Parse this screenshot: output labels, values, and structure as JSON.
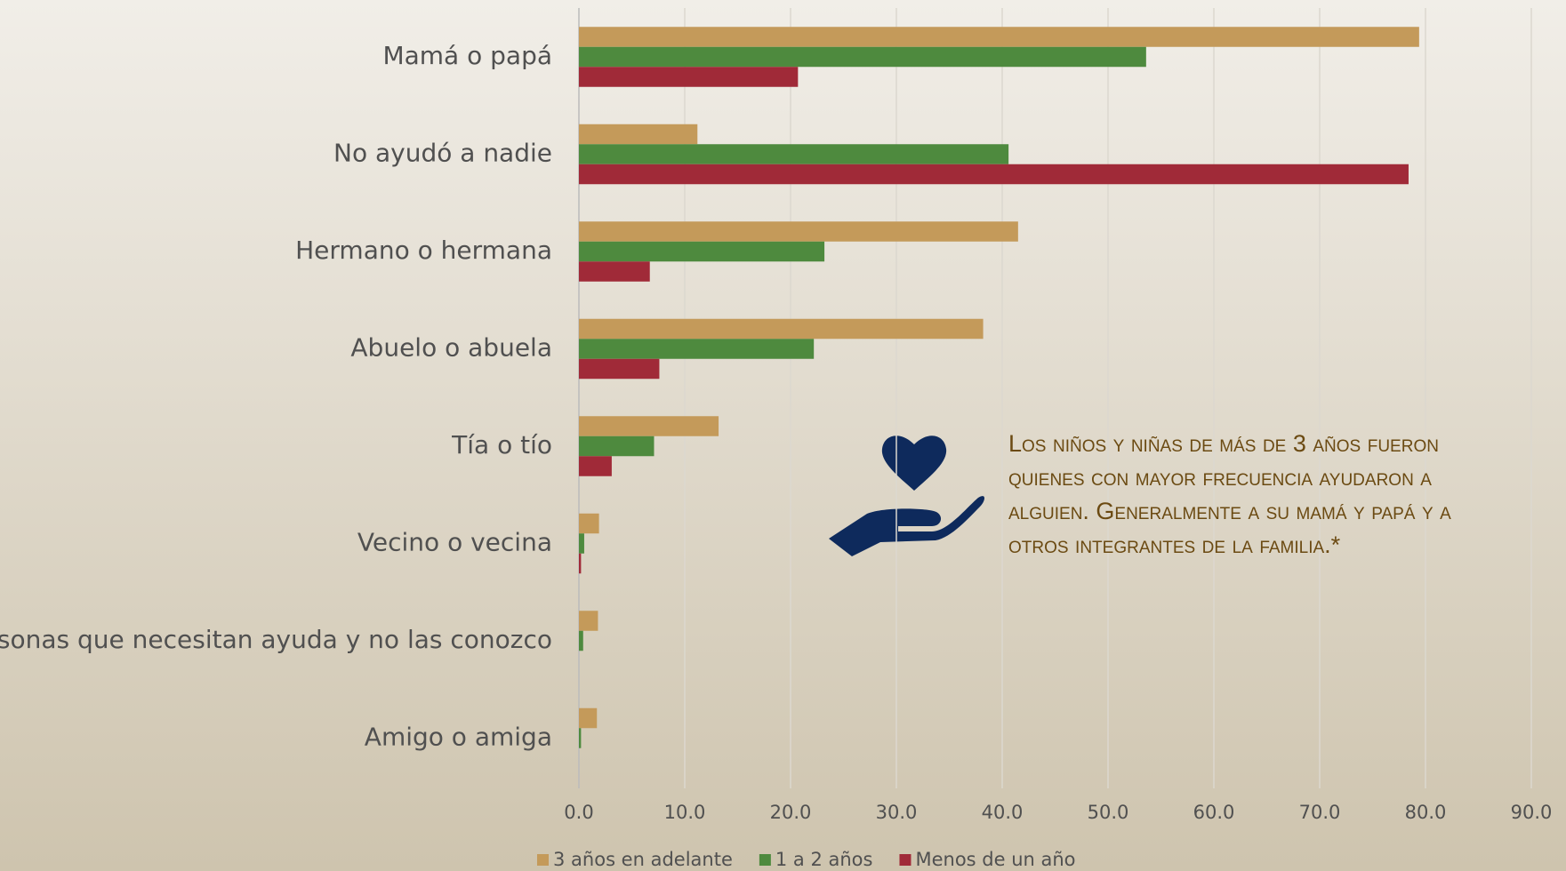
{
  "chart_data": {
    "type": "bar",
    "orientation": "horizontal",
    "categories": [
      "Mamá o papá",
      "No ayudó a nadie",
      "Hermano o hermana",
      "Abuelo o abuela",
      "Tía o tío",
      "Vecino o vecina",
      "Personas que necesitan ayuda y no las conozco",
      "Amigo o amiga"
    ],
    "series": [
      {
        "name": "3 años en adelante",
        "color": "#c49a5a",
        "values": [
          79.4,
          11.2,
          41.5,
          38.2,
          13.2,
          1.9,
          1.8,
          1.7
        ]
      },
      {
        "name": "1 a 2 años",
        "color": "#4e8a3e",
        "values": [
          53.6,
          40.6,
          23.2,
          22.2,
          7.1,
          0.5,
          0.4,
          0.2
        ]
      },
      {
        "name": "Menos de un año",
        "color": "#a02a38",
        "values": [
          20.7,
          78.4,
          6.7,
          7.6,
          3.1,
          0.2,
          0,
          0
        ]
      }
    ],
    "xlim": [
      0,
      90
    ],
    "xticks": [
      {
        "value": 0,
        "label": "0.0"
      },
      {
        "value": 10,
        "label": "10.0"
      },
      {
        "value": 20,
        "label": "20.0"
      },
      {
        "value": 30,
        "label": "30.0"
      },
      {
        "value": 40,
        "label": "40.0"
      },
      {
        "value": 50,
        "label": "50.0"
      },
      {
        "value": 60,
        "label": "60.0"
      },
      {
        "value": 70,
        "label": "70.0"
      },
      {
        "value": 80,
        "label": "80.0"
      },
      {
        "value": 90,
        "label": "90.0"
      }
    ],
    "grid": true,
    "legend": "bottom",
    "annotation": "Los niños y niñas de más de 3 años fueron quienes con mayor frecuencia ayudaron a alguien. Generalmente a su mamá y papá y a otros integrantes de la familia.*"
  }
}
